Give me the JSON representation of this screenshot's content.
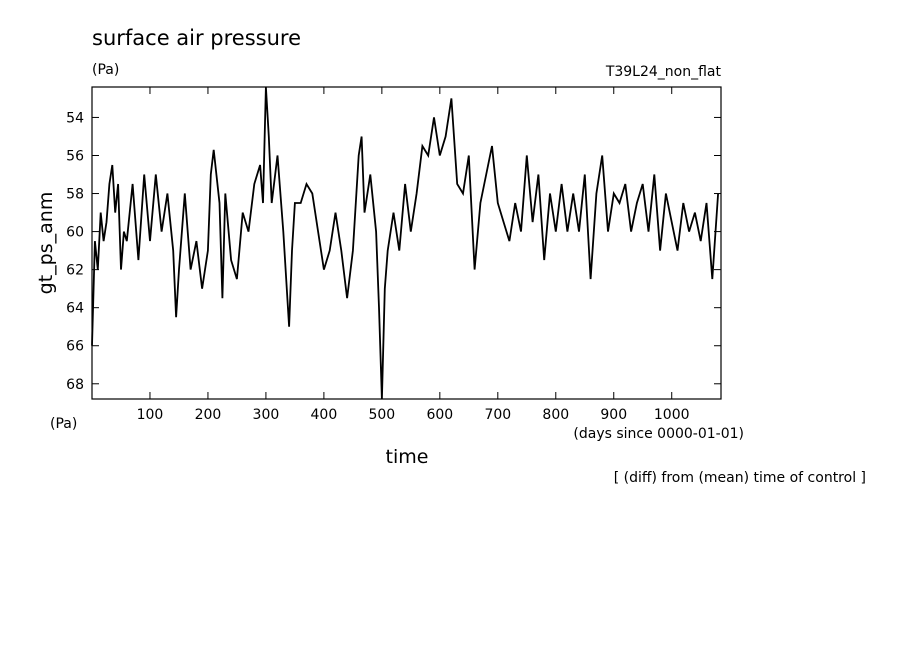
{
  "chart_data": {
    "type": "line",
    "title": "surface air pressure",
    "units_label": "(Pa)",
    "subtitle": "T39L24_non_flat",
    "y_label": "gt_ps_anm",
    "x_label": "time",
    "x_units": "(days since 0000-01-01)",
    "y_units": "(Pa)",
    "annotation": "[ (diff) from (mean) time of control ]",
    "x": [
      0,
      5,
      10,
      15,
      20,
      25,
      30,
      35,
      40,
      45,
      50,
      55,
      60,
      70,
      80,
      90,
      100,
      110,
      120,
      130,
      140,
      145,
      150,
      160,
      170,
      180,
      190,
      200,
      205,
      210,
      220,
      225,
      230,
      240,
      250,
      260,
      270,
      280,
      290,
      295,
      300,
      305,
      310,
      320,
      330,
      340,
      345,
      350,
      360,
      370,
      380,
      390,
      400,
      410,
      420,
      430,
      440,
      450,
      460,
      465,
      470,
      480,
      490,
      495,
      500,
      505,
      510,
      520,
      530,
      540,
      550,
      560,
      570,
      580,
      590,
      600,
      610,
      620,
      630,
      640,
      650,
      655,
      660,
      670,
      680,
      690,
      700,
      710,
      720,
      730,
      740,
      750,
      760,
      770,
      780,
      790,
      800,
      810,
      820,
      830,
      840,
      850,
      860,
      870,
      880,
      890,
      900,
      910,
      920,
      930,
      940,
      950,
      960,
      970,
      980,
      990,
      1000,
      1010,
      1020,
      1030,
      1040,
      1050,
      1060,
      1070,
      1080
    ],
    "values": [
      66,
      60.5,
      62,
      59,
      60.5,
      59.5,
      57.5,
      56.5,
      59,
      57.5,
      62,
      60,
      60.5,
      57.5,
      61.5,
      57,
      60.5,
      57,
      60,
      58,
      61,
      64.5,
      62,
      58,
      62,
      60.5,
      63,
      61,
      57,
      55.7,
      58.5,
      63.5,
      58,
      61.5,
      62.5,
      59,
      60,
      57.5,
      56.5,
      58.5,
      52.4,
      55,
      58.5,
      56,
      60,
      65,
      61,
      58.5,
      58.5,
      57.5,
      58,
      60,
      62,
      61,
      59,
      61,
      63.5,
      61,
      56,
      55,
      59,
      57,
      60,
      64,
      68.8,
      63,
      61,
      59,
      61,
      57.5,
      60,
      58,
      55.5,
      56,
      54,
      56,
      55,
      53,
      57.5,
      58,
      56,
      59,
      62,
      58.5,
      57,
      55.5,
      58.5,
      59.5,
      60.5,
      58.5,
      60,
      56,
      59.5,
      57,
      61.5,
      58,
      60,
      57.5,
      60,
      58,
      60,
      57,
      62.5,
      58,
      56,
      60,
      58,
      58.5,
      57.5,
      60,
      58.5,
      57.5,
      60,
      57,
      61,
      58,
      59.5,
      61,
      58.5,
      60,
      59,
      60.5,
      58.5,
      62.5,
      58
    ],
    "color": "#000000",
    "xlim": [
      0,
      1085
    ],
    "xticks": [
      100,
      200,
      300,
      400,
      500,
      600,
      700,
      800,
      900,
      1000
    ],
    "ylim": [
      68.8,
      52.4
    ],
    "yticks": [
      54,
      56,
      58,
      60,
      62,
      64,
      66,
      68
    ]
  }
}
